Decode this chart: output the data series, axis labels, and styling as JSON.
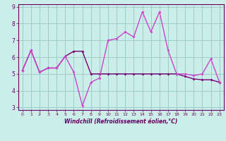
{
  "title": "",
  "xlabel": "Windchill (Refroidissement éolien,°C)",
  "x_values": [
    0,
    1,
    2,
    3,
    4,
    5,
    6,
    7,
    8,
    9,
    10,
    11,
    12,
    13,
    14,
    15,
    16,
    17,
    18,
    19,
    20,
    21,
    22,
    23
  ],
  "line1_y": [
    5.2,
    6.4,
    5.1,
    5.35,
    5.35,
    6.05,
    5.1,
    3.1,
    4.5,
    4.75,
    7.0,
    7.1,
    7.5,
    7.2,
    8.7,
    7.5,
    8.7,
    6.4,
    5.0,
    5.0,
    4.9,
    5.0,
    5.9,
    4.5
  ],
  "line2_y": [
    5.2,
    6.4,
    5.1,
    5.35,
    5.35,
    6.05,
    6.35,
    6.35,
    5.0,
    5.0,
    5.0,
    5.0,
    5.0,
    5.0,
    5.0,
    5.0,
    5.0,
    5.0,
    5.0,
    4.85,
    4.7,
    4.65,
    4.65,
    4.5
  ],
  "line1_color": "#cc44cc",
  "line2_color": "#770077",
  "bg_color": "#cceee8",
  "grid_color": "#99cccc",
  "tick_color": "#660066",
  "label_color": "#660066",
  "ylim_min": 3.0,
  "ylim_max": 9.0,
  "xlim_min": 0,
  "xlim_max": 23,
  "yticks": [
    3,
    4,
    5,
    6,
    7,
    8,
    9
  ]
}
